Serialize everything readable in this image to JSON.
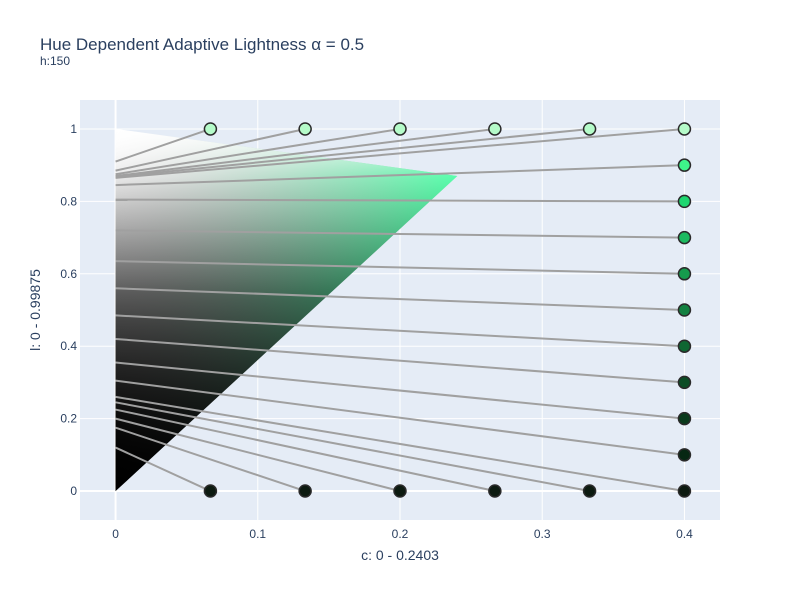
{
  "chart_data": {
    "type": "scatter",
    "title": "Hue Dependent Adaptive Lightness α = 0.5",
    "subtitle": "h:150",
    "xlabel": "c: 0 - 0.2403",
    "ylabel": "l: 0 - 0.99875",
    "xlim": [
      -0.025,
      0.425
    ],
    "ylim": [
      -0.08,
      1.08
    ],
    "x_ticks": [
      0,
      0.1,
      0.2,
      0.3,
      0.4
    ],
    "x_tick_labels": [
      "0",
      "0.1",
      "0.2",
      "0.3",
      "0.4"
    ],
    "y_ticks": [
      0,
      0.2,
      0.4,
      0.6,
      0.8,
      1
    ],
    "y_tick_labels": [
      "0",
      "0.2",
      "0.4",
      "0.6",
      "0.8",
      "1"
    ],
    "grid": true,
    "colors": {
      "plot_bg": "#e5ecf6",
      "grid": "#ffffff",
      "line": "#a0a0a0",
      "marker_edge": "#2a2a2a",
      "cusp_color": "#00ff80"
    },
    "gamut": {
      "cusp_c": 0.2403,
      "cusp_l": 0.87
    },
    "mapping_lines": [
      {
        "x0": 0.0667,
        "y0": 1.0,
        "x1": 0.0,
        "y1": 0.91
      },
      {
        "x0": 0.1333,
        "y0": 1.0,
        "x1": 0.0,
        "y1": 0.885
      },
      {
        "x0": 0.2,
        "y0": 1.0,
        "x1": 0.0,
        "y1": 0.875
      },
      {
        "x0": 0.2667,
        "y0": 1.0,
        "x1": 0.0,
        "y1": 0.87
      },
      {
        "x0": 0.3333,
        "y0": 1.0,
        "x1": 0.0,
        "y1": 0.868
      },
      {
        "x0": 0.4,
        "y0": 1.0,
        "x1": 0.0,
        "y1": 0.865
      },
      {
        "x0": 0.4,
        "y0": 0.9,
        "x1": 0.0,
        "y1": 0.845
      },
      {
        "x0": 0.4,
        "y0": 0.8,
        "x1": 0.0,
        "y1": 0.805
      },
      {
        "x0": 0.4,
        "y0": 0.7,
        "x1": 0.0,
        "y1": 0.72
      },
      {
        "x0": 0.4,
        "y0": 0.6,
        "x1": 0.0,
        "y1": 0.635
      },
      {
        "x0": 0.4,
        "y0": 0.5,
        "x1": 0.0,
        "y1": 0.56
      },
      {
        "x0": 0.4,
        "y0": 0.4,
        "x1": 0.0,
        "y1": 0.485
      },
      {
        "x0": 0.4,
        "y0": 0.3,
        "x1": 0.0,
        "y1": 0.42
      },
      {
        "x0": 0.4,
        "y0": 0.2,
        "x1": 0.0,
        "y1": 0.355
      },
      {
        "x0": 0.4,
        "y0": 0.1,
        "x1": 0.0,
        "y1": 0.305
      },
      {
        "x0": 0.4,
        "y0": 0.0,
        "x1": 0.0,
        "y1": 0.26
      },
      {
        "x0": 0.3333,
        "y0": 0.0,
        "x1": 0.0,
        "y1": 0.245
      },
      {
        "x0": 0.2667,
        "y0": 0.0,
        "x1": 0.0,
        "y1": 0.225
      },
      {
        "x0": 0.2,
        "y0": 0.0,
        "x1": 0.0,
        "y1": 0.2
      },
      {
        "x0": 0.1333,
        "y0": 0.0,
        "x1": 0.0,
        "y1": 0.175
      },
      {
        "x0": 0.0667,
        "y0": 0.0,
        "x1": 0.0,
        "y1": 0.12
      }
    ],
    "points": [
      {
        "x": 0.0667,
        "y": 1.0,
        "color": "#b5fbc9"
      },
      {
        "x": 0.1333,
        "y": 1.0,
        "color": "#b5fbc9"
      },
      {
        "x": 0.2,
        "y": 1.0,
        "color": "#b5fbc9"
      },
      {
        "x": 0.2667,
        "y": 1.0,
        "color": "#b5fbc9"
      },
      {
        "x": 0.3333,
        "y": 1.0,
        "color": "#b5fbc9"
      },
      {
        "x": 0.4,
        "y": 1.0,
        "color": "#b5fbc9"
      },
      {
        "x": 0.4,
        "y": 0.9,
        "color": "#3ef58a"
      },
      {
        "x": 0.4,
        "y": 0.8,
        "color": "#1fd670"
      },
      {
        "x": 0.4,
        "y": 0.7,
        "color": "#1cba60"
      },
      {
        "x": 0.4,
        "y": 0.6,
        "color": "#169b4d"
      },
      {
        "x": 0.4,
        "y": 0.5,
        "color": "#128040"
      },
      {
        "x": 0.4,
        "y": 0.4,
        "color": "#0f6632"
      },
      {
        "x": 0.4,
        "y": 0.3,
        "color": "#0c4d26"
      },
      {
        "x": 0.4,
        "y": 0.2,
        "color": "#0a3a1c"
      },
      {
        "x": 0.4,
        "y": 0.1,
        "color": "#072713"
      },
      {
        "x": 0.4,
        "y": 0.0,
        "color": "#0c1a10"
      },
      {
        "x": 0.3333,
        "y": 0.0,
        "color": "#0c1a10"
      },
      {
        "x": 0.2667,
        "y": 0.0,
        "color": "#0c1a10"
      },
      {
        "x": 0.2,
        "y": 0.0,
        "color": "#0c1a10"
      },
      {
        "x": 0.1333,
        "y": 0.0,
        "color": "#0c1a10"
      },
      {
        "x": 0.0667,
        "y": 0.0,
        "color": "#0c1a10"
      }
    ]
  }
}
